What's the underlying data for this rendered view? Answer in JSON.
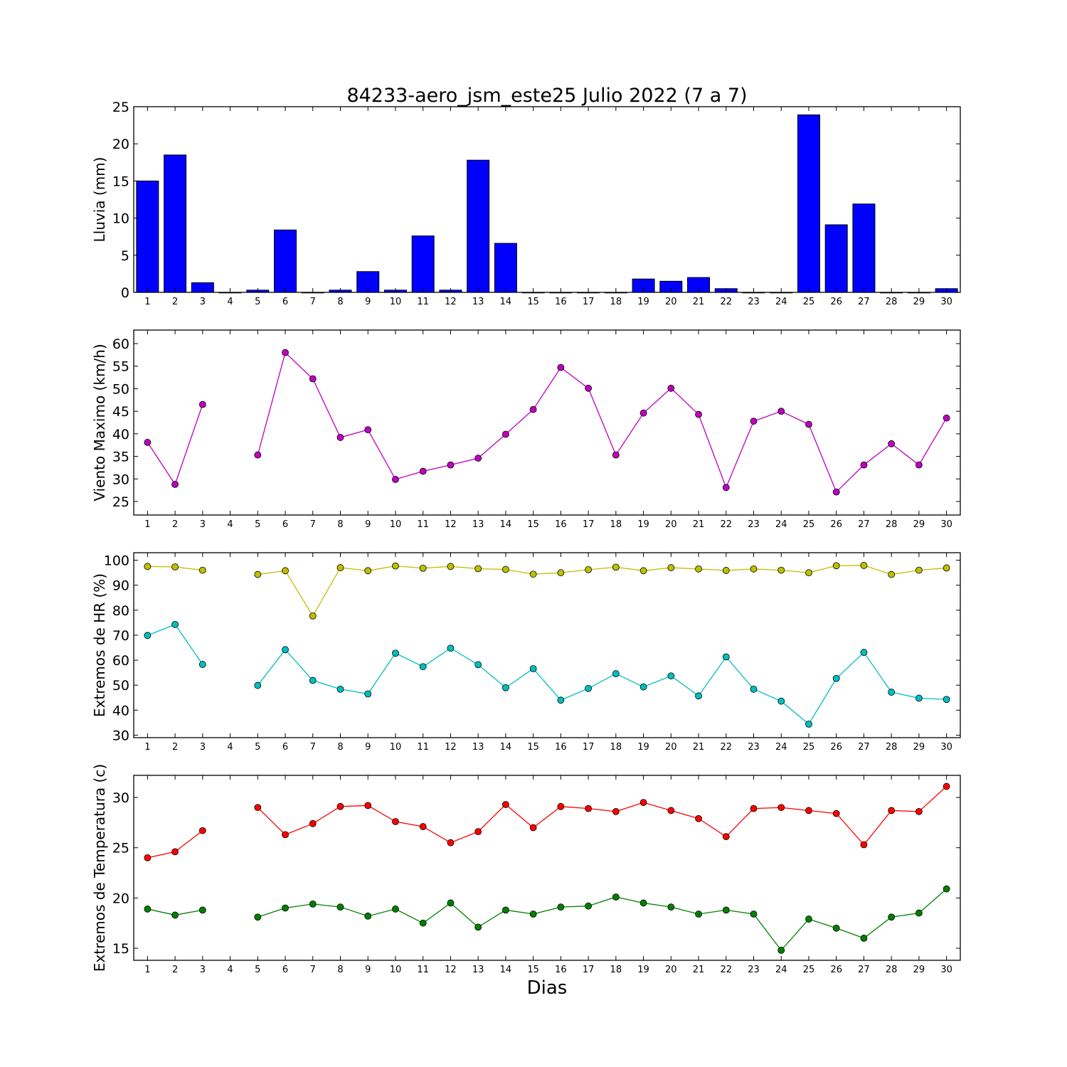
{
  "title": "84233-aero_jsm_este25 Julio 2022  (7 a 7)",
  "xlabel": "Dias",
  "colors": {
    "lluvia": "#0000ff",
    "viento": "#bf00bf",
    "hr_max": "#bfbf00",
    "hr_min": "#00bfbf",
    "temp_max": "#ff0000",
    "temp_min": "#008000"
  },
  "chart_data": [
    {
      "type": "bar",
      "ylabel": "Lluvia (mm)",
      "ylim": [
        0,
        25
      ],
      "yticks": [
        0,
        5,
        10,
        15,
        20,
        25
      ],
      "categories": [
        1,
        2,
        3,
        4,
        5,
        6,
        7,
        8,
        9,
        10,
        11,
        12,
        13,
        14,
        15,
        16,
        17,
        18,
        19,
        20,
        21,
        22,
        23,
        24,
        25,
        26,
        27,
        28,
        29,
        30
      ],
      "series": [
        {
          "values": [
            15.0,
            18.5,
            1.3,
            0,
            0.3,
            8.4,
            0,
            0.3,
            2.8,
            0.3,
            7.6,
            0.3,
            17.8,
            6.6,
            0,
            0,
            0,
            0,
            1.8,
            1.5,
            2.0,
            0.5,
            0,
            0,
            23.9,
            9.1,
            11.9,
            0,
            0,
            0.5
          ],
          "color": "#0000ff"
        }
      ]
    },
    {
      "type": "line",
      "ylabel": "Viento Maximo (km/h)",
      "ylim": [
        22,
        63
      ],
      "yticks": [
        25,
        30,
        35,
        40,
        45,
        50,
        55,
        60
      ],
      "categories": [
        1,
        2,
        3,
        4,
        5,
        6,
        7,
        8,
        9,
        10,
        11,
        12,
        13,
        14,
        15,
        16,
        17,
        18,
        19,
        20,
        21,
        22,
        23,
        24,
        25,
        26,
        27,
        28,
        29,
        30
      ],
      "series": [
        {
          "values": [
            38.1,
            28.8,
            46.5,
            null,
            35.3,
            58.0,
            52.2,
            39.2,
            40.9,
            29.9,
            31.7,
            33.1,
            34.6,
            39.9,
            45.4,
            54.7,
            50.1,
            35.3,
            44.6,
            50.1,
            44.3,
            28.1,
            42.8,
            45.0,
            42.1,
            27.1,
            33.1,
            37.8,
            33.1,
            43.5
          ],
          "color": "#bf00bf"
        }
      ]
    },
    {
      "type": "line",
      "ylabel": "Extremos de HR (%)",
      "ylim": [
        29,
        103
      ],
      "yticks": [
        30,
        40,
        50,
        60,
        70,
        80,
        90,
        100
      ],
      "categories": [
        1,
        2,
        3,
        4,
        5,
        6,
        7,
        8,
        9,
        10,
        11,
        12,
        13,
        14,
        15,
        16,
        17,
        18,
        19,
        20,
        21,
        22,
        23,
        24,
        25,
        26,
        27,
        28,
        29,
        30
      ],
      "series": [
        {
          "values": [
            97.5,
            97.3,
            96.0,
            null,
            94.3,
            95.8,
            77.7,
            97.0,
            95.8,
            97.7,
            96.8,
            97.5,
            96.6,
            96.3,
            94.4,
            95.0,
            96.2,
            97.2,
            95.8,
            97.0,
            96.5,
            95.9,
            96.5,
            96.0,
            95.0,
            97.8,
            97.9,
            94.3,
            96.0,
            96.9
          ],
          "color": "#bfbf00"
        },
        {
          "values": [
            69.9,
            74.3,
            58.3,
            null,
            49.9,
            64.2,
            51.9,
            48.4,
            46.5,
            62.8,
            57.4,
            64.8,
            58.2,
            49.0,
            56.6,
            44.0,
            48.7,
            54.6,
            49.3,
            53.7,
            45.7,
            61.3,
            48.4,
            43.6,
            34.4,
            52.7,
            63.1,
            47.2,
            44.8,
            44.3
          ],
          "color": "#00bfbf"
        }
      ]
    },
    {
      "type": "line",
      "ylabel": "Extremos de Temperatura (c)",
      "ylim": [
        13.8,
        32.2
      ],
      "yticks": [
        15,
        20,
        25,
        30
      ],
      "categories": [
        1,
        2,
        3,
        4,
        5,
        6,
        7,
        8,
        9,
        10,
        11,
        12,
        13,
        14,
        15,
        16,
        17,
        18,
        19,
        20,
        21,
        22,
        23,
        24,
        25,
        26,
        27,
        28,
        29,
        30
      ],
      "series": [
        {
          "values": [
            24.0,
            24.6,
            26.7,
            null,
            29.0,
            26.3,
            27.4,
            29.1,
            29.2,
            27.6,
            27.1,
            25.5,
            26.6,
            29.3,
            27.0,
            29.1,
            28.9,
            28.6,
            29.5,
            28.7,
            27.9,
            26.1,
            28.9,
            29.0,
            28.7,
            28.4,
            25.3,
            28.7,
            28.6,
            31.1
          ],
          "color": "#ff0000"
        },
        {
          "values": [
            18.9,
            18.3,
            18.8,
            null,
            18.1,
            19.0,
            19.4,
            19.1,
            18.2,
            18.9,
            17.5,
            19.5,
            17.1,
            18.8,
            18.4,
            19.1,
            19.2,
            20.1,
            19.5,
            19.1,
            18.4,
            18.8,
            18.4,
            14.8,
            17.9,
            17.0,
            16.0,
            18.1,
            18.5,
            20.9
          ],
          "color": "#008000"
        }
      ]
    }
  ]
}
